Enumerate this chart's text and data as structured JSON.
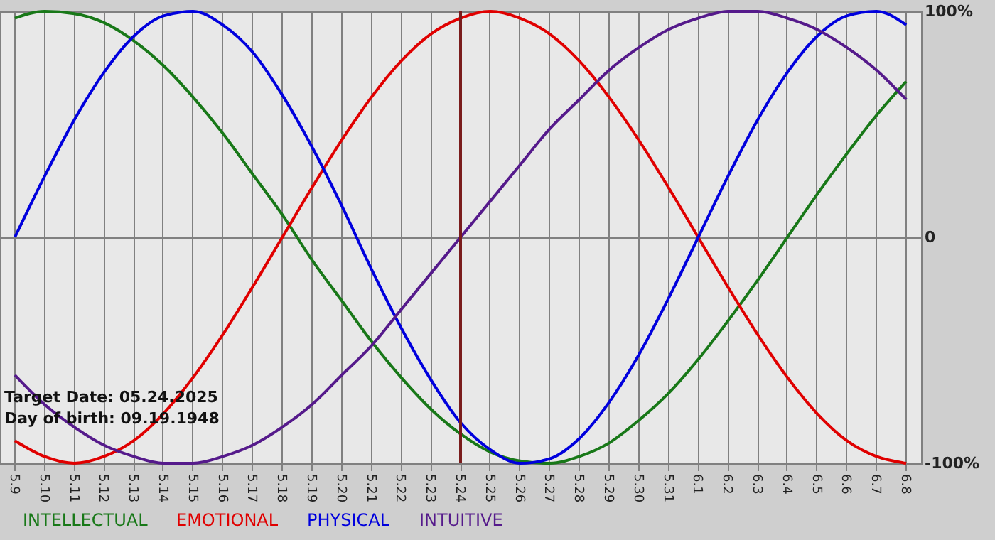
{
  "chart_data": {
    "type": "line",
    "categories": [
      "5.9",
      "5.10",
      "5.11",
      "5.12",
      "5.13",
      "5.14",
      "5.15",
      "5.16",
      "5.17",
      "5.18",
      "5.19",
      "5.20",
      "5.21",
      "5.22",
      "5.23",
      "5.24",
      "5.25",
      "5.26",
      "5.27",
      "5.28",
      "5.29",
      "5.30",
      "5.31",
      "6.1",
      "6.2",
      "6.3",
      "6.4",
      "6.5",
      "6.6",
      "6.7",
      "6.8"
    ],
    "series": [
      {
        "name": "INTELLECTUAL",
        "color": "#187818",
        "values": [
          97,
          100,
          99,
          95,
          87,
          76,
          62,
          46,
          28,
          10,
          -10,
          -28,
          -46,
          -62,
          -76,
          -87,
          -95,
          -99,
          -100,
          -97,
          -91,
          -81,
          -69,
          -54,
          -37,
          -19,
          0,
          19,
          37,
          54,
          69
        ]
      },
      {
        "name": "EMOTIONAL",
        "color": "#e00000",
        "values": [
          -90,
          -97,
          -100,
          -97,
          -90,
          -78,
          -62,
          -43,
          -22,
          0,
          22,
          43,
          62,
          78,
          90,
          97,
          100,
          97,
          90,
          78,
          62,
          43,
          22,
          0,
          -22,
          -43,
          -62,
          -78,
          -90,
          -97,
          -100
        ]
      },
      {
        "name": "PHYSICAL",
        "color": "#0000dd",
        "values": [
          0,
          27,
          52,
          73,
          89,
          98,
          100,
          94,
          82,
          63,
          40,
          14,
          -14,
          -40,
          -63,
          -82,
          -94,
          -100,
          -98,
          -89,
          -73,
          -52,
          -27,
          0,
          27,
          52,
          73,
          89,
          98,
          100,
          94
        ]
      },
      {
        "name": "INTUITIVE",
        "color": "#551a8b",
        "values": [
          -61,
          -74,
          -84,
          -92,
          -97,
          -100,
          -100,
          -97,
          -92,
          -84,
          -74,
          -61,
          -48,
          -32,
          -16,
          0,
          16,
          32,
          48,
          61,
          74,
          84,
          92,
          97,
          100,
          100,
          97,
          92,
          84,
          74,
          61
        ]
      }
    ],
    "ylim": [
      -100,
      100
    ],
    "yticks": [
      {
        "value": -100,
        "label": "-100%"
      },
      0,
      {
        "value": 100,
        "label": "100%"
      }
    ],
    "grid": true,
    "legend": "bottom",
    "marker": "none",
    "line_style": "solid",
    "ref_lines": [
      {
        "axis": "x",
        "value": "5.24",
        "color": "#7a1c1c"
      }
    ],
    "annotations": [
      "Target Date: 05.24.2025",
      "Day of birth: 09.19.1948"
    ]
  }
}
